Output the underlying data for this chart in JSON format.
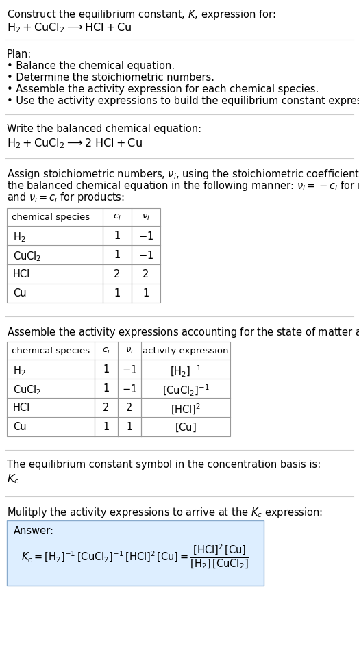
{
  "title_line1": "Construct the equilibrium constant, $K$, expression for:",
  "title_line2": "$\\mathrm{H_2 + CuCl_2 \\longrightarrow HCl + Cu}$",
  "plan_header": "Plan:",
  "plan_items": [
    "• Balance the chemical equation.",
    "• Determine the stoichiometric numbers.",
    "• Assemble the activity expression for each chemical species.",
    "• Use the activity expressions to build the equilibrium constant expression."
  ],
  "balanced_header": "Write the balanced chemical equation:",
  "balanced_eq": "$\\mathrm{H_2 + CuCl_2 \\longrightarrow 2\\ HCl + Cu}$",
  "stoich_intro_lines": [
    "Assign stoichiometric numbers, $\\nu_i$, using the stoichiometric coefficients, $c_i$, from",
    "the balanced chemical equation in the following manner: $\\nu_i = -c_i$ for reactants",
    "and $\\nu_i = c_i$ for products:"
  ],
  "table1_headers": [
    "chemical species",
    "$c_i$",
    "$\\nu_i$"
  ],
  "table1_rows": [
    [
      "$\\mathrm{H_2}$",
      "1",
      "$-1$"
    ],
    [
      "$\\mathrm{CuCl_2}$",
      "1",
      "$-1$"
    ],
    [
      "HCl",
      "2",
      "2"
    ],
    [
      "Cu",
      "1",
      "1"
    ]
  ],
  "activity_intro": "Assemble the activity expressions accounting for the state of matter and $\\nu_i$:",
  "table2_headers": [
    "chemical species",
    "$c_i$",
    "$\\nu_i$",
    "activity expression"
  ],
  "table2_rows": [
    [
      "$\\mathrm{H_2}$",
      "1",
      "$-1$",
      "$[\\mathrm{H_2}]^{-1}$"
    ],
    [
      "$\\mathrm{CuCl_2}$",
      "1",
      "$-1$",
      "$[\\mathrm{CuCl_2}]^{-1}$"
    ],
    [
      "HCl",
      "2",
      "2",
      "$[\\mathrm{HCl}]^2$"
    ],
    [
      "Cu",
      "1",
      "1",
      "$[\\mathrm{Cu}]$"
    ]
  ],
  "kc_intro": "The equilibrium constant symbol in the concentration basis is:",
  "kc_symbol": "$K_c$",
  "multiply_intro": "Mulitply the activity expressions to arrive at the $K_c$ expression:",
  "answer_label": "Answer:",
  "kc_eq": "$K_c = [\\mathrm{H_2}]^{-1}\\,[\\mathrm{CuCl_2}]^{-1}\\,[\\mathrm{HCl}]^2\\,[\\mathrm{Cu}] = \\dfrac{[\\mathrm{HCl}]^2\\,[\\mathrm{Cu}]}{[\\mathrm{H_2}]\\,[\\mathrm{CuCl_2}]}$",
  "bg_color": "#ffffff",
  "table_border_color": "#999999",
  "answer_bg_color": "#ddeeff",
  "answer_border_color": "#88aacc",
  "text_color": "#000000",
  "separator_color": "#cccccc"
}
